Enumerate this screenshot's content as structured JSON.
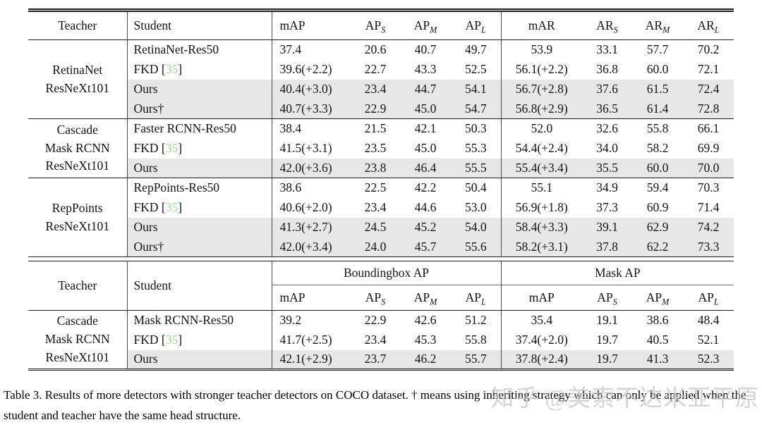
{
  "colors": {
    "citation_green": "#97e697",
    "row_shade_gray": "#e7e7e7",
    "rule_black": "#1c1c1c"
  },
  "watermark": {
    "text": "知乎 @美索不达米亚平原"
  },
  "caption": {
    "text": "Table 3. Results of more detectors with stronger teacher detectors on COCO dataset. † means using inheriting strategy which can only be applied when the student and teacher have the same head structure."
  },
  "table1": {
    "headers": [
      {
        "text": "Teacher"
      },
      {
        "text": "Student"
      },
      {
        "text": "mAP"
      },
      {
        "base": "AP",
        "sub": "S"
      },
      {
        "base": "AP",
        "sub": "M"
      },
      {
        "base": "AP",
        "sub": "L"
      },
      {
        "text": "mAR"
      },
      {
        "base": "AR",
        "sub": "S"
      },
      {
        "base": "AR",
        "sub": "M"
      },
      {
        "base": "AR",
        "sub": "L"
      }
    ],
    "groups": [
      {
        "teacher_lines": [
          "RetinaNet",
          "ResNeXt101"
        ],
        "rows": [
          {
            "student": {
              "text": "RetinaNet-Res50"
            },
            "shaded": false,
            "values": [
              "37.4",
              "20.6",
              "40.7",
              "49.7",
              "53.9",
              "33.1",
              "57.7",
              "70.2"
            ]
          },
          {
            "student": {
              "pre": "FKD [",
              "cite": "35",
              "post": "]"
            },
            "shaded": false,
            "values": [
              "39.6(+2.2)",
              "22.7",
              "43.3",
              "52.5",
              "56.1(+2.2)",
              "36.8",
              "60.0",
              "72.1"
            ]
          },
          {
            "student": {
              "text": "Ours"
            },
            "shaded": true,
            "values": [
              "40.4(+3.0)",
              "23.4",
              "44.7",
              "54.1",
              "56.7(+2.8)",
              "37.6",
              "61.5",
              "72.4"
            ]
          },
          {
            "student": {
              "text": "Ours†"
            },
            "shaded": true,
            "values": [
              "40.7(+3.3)",
              "22.9",
              "45.0",
              "54.7",
              "56.8(+2.9)",
              "36.5",
              "61.4",
              "72.8"
            ]
          }
        ]
      },
      {
        "teacher_lines": [
          "Cascade",
          "Mask RCNN",
          "ResNeXt101"
        ],
        "rows": [
          {
            "student": {
              "text": "Faster RCNN-Res50"
            },
            "shaded": false,
            "values": [
              "38.4",
              "21.5",
              "42.1",
              "50.3",
              "52.0",
              "32.6",
              "55.8",
              "66.1"
            ]
          },
          {
            "student": {
              "pre": "FKD [",
              "cite": "35",
              "post": "]"
            },
            "shaded": false,
            "values": [
              "41.5(+3.1)",
              "23.5",
              "45.0",
              "55.3",
              "54.4(+2.4)",
              "34.0",
              "58.2",
              "69.9"
            ]
          },
          {
            "student": {
              "text": "Ours"
            },
            "shaded": true,
            "values": [
              "42.0(+3.6)",
              "23.8",
              "46.4",
              "55.5",
              "55.4(+3.4)",
              "35.5",
              "60.0",
              "70.0"
            ]
          }
        ]
      },
      {
        "teacher_lines": [
          "RepPoints",
          "ResNeXt101"
        ],
        "rows": [
          {
            "student": {
              "text": "RepPoints-Res50"
            },
            "shaded": false,
            "values": [
              "38.6",
              "22.5",
              "42.2",
              "50.4",
              "55.1",
              "34.9",
              "59.4",
              "70.3"
            ]
          },
          {
            "student": {
              "pre": "FKD [",
              "cite": "35",
              "post": "]"
            },
            "shaded": false,
            "values": [
              "40.6(+2.0)",
              "23.4",
              "44.6",
              "53.0",
              "56.9(+1.8)",
              "37.3",
              "60.9",
              "71.4"
            ]
          },
          {
            "student": {
              "text": "Ours"
            },
            "shaded": true,
            "values": [
              "41.3(+2.7)",
              "24.5",
              "45.2",
              "54.0",
              "58.4(+3.3)",
              "39.1",
              "62.9",
              "74.2"
            ]
          },
          {
            "student": {
              "text": "Ours†"
            },
            "shaded": true,
            "values": [
              "42.0(+3.4)",
              "24.0",
              "45.7",
              "55.6",
              "58.2(+3.1)",
              "37.8",
              "62.2",
              "73.3"
            ]
          }
        ]
      }
    ]
  },
  "table2": {
    "headers": [
      {
        "text": "Teacher"
      },
      {
        "text": "Student"
      }
    ],
    "span_headers": [
      {
        "text": "Boundingbox AP"
      },
      {
        "text": "Mask AP"
      }
    ],
    "sub_headers": [
      {
        "text": "mAP"
      },
      {
        "base": "AP",
        "sub": "S"
      },
      {
        "base": "AP",
        "sub": "M"
      },
      {
        "base": "AP",
        "sub": "L"
      },
      {
        "text": "mAP"
      },
      {
        "base": "AP",
        "sub": "S"
      },
      {
        "base": "AP",
        "sub": "M"
      },
      {
        "base": "AP",
        "sub": "L"
      }
    ],
    "groups": [
      {
        "teacher_lines": [
          "Cascade",
          "Mask RCNN",
          "ResNeXt101"
        ],
        "rows": [
          {
            "student": {
              "text": "Mask RCNN-Res50"
            },
            "shaded": false,
            "values": [
              "39.2",
              "22.9",
              "42.6",
              "51.2",
              "35.4",
              "19.1",
              "38.6",
              "48.4"
            ]
          },
          {
            "student": {
              "pre": "FKD [",
              "cite": "35",
              "post": "]"
            },
            "shaded": false,
            "values": [
              "41.7(+2.5)",
              "23.4",
              "45.3",
              "55.8",
              "37.4(+2.0)",
              "19.7",
              "40.5",
              "52.1"
            ]
          },
          {
            "student": {
              "text": "Ours"
            },
            "shaded": true,
            "values": [
              "42.1(+2.9)",
              "23.7",
              "46.2",
              "55.7",
              "37.8(+2.4)",
              "19.7",
              "41.3",
              "52.3"
            ]
          }
        ]
      }
    ]
  }
}
